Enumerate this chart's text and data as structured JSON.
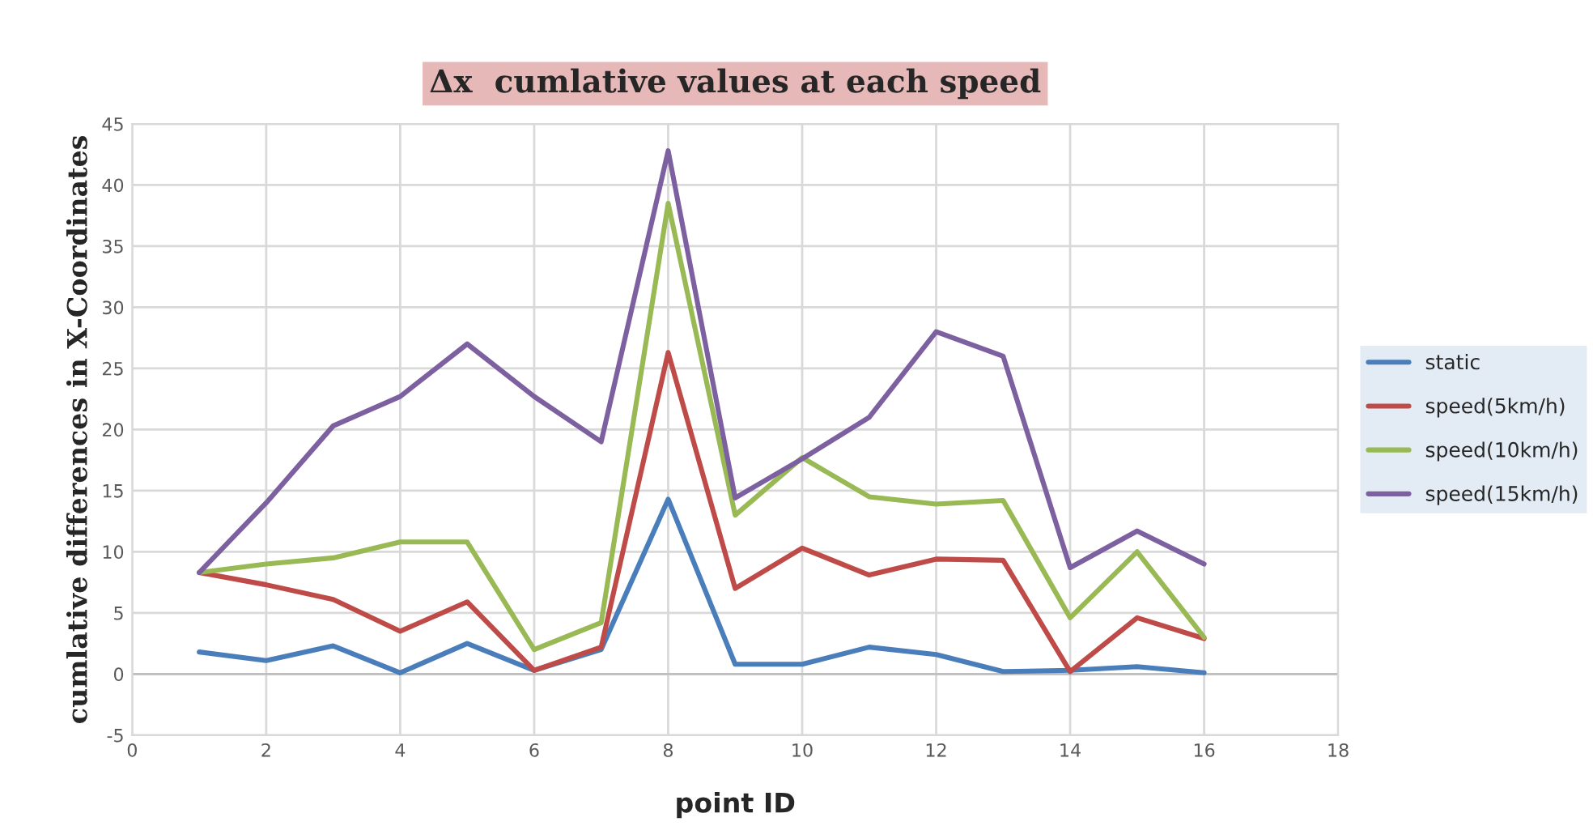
{
  "chart_data": {
    "type": "line",
    "title": "Δx  cumlative values at each speed",
    "xlabel": "point ID",
    "ylabel": "cumlative differences in X-Coordinates",
    "x": [
      1,
      2,
      3,
      4,
      5,
      6,
      7,
      8,
      9,
      10,
      11,
      12,
      13,
      14,
      15,
      16
    ],
    "series": [
      {
        "name": "static",
        "color": "#4a7ebb",
        "values": [
          1.8,
          1.1,
          2.3,
          0.1,
          2.5,
          0.3,
          2.0,
          14.3,
          0.8,
          0.8,
          2.2,
          1.6,
          0.2,
          0.3,
          0.6,
          0.1
        ]
      },
      {
        "name": "speed(5km/h)",
        "color": "#be4b48",
        "values": [
          8.3,
          7.3,
          6.1,
          3.5,
          5.9,
          0.3,
          2.2,
          26.3,
          7.0,
          10.3,
          8.1,
          9.4,
          9.3,
          0.2,
          4.6,
          2.9
        ]
      },
      {
        "name": "speed(10km/h)",
        "color": "#98b954",
        "values": [
          8.3,
          9.0,
          9.5,
          10.8,
          10.8,
          2.0,
          4.2,
          38.5,
          13.0,
          17.7,
          14.5,
          13.9,
          14.2,
          4.6,
          10.0,
          3.0
        ]
      },
      {
        "name": "speed(15km/h)",
        "color": "#7d60a0",
        "values": [
          8.3,
          14.0,
          20.3,
          22.7,
          27.0,
          22.7,
          19.0,
          42.8,
          14.4,
          17.6,
          21.0,
          28.0,
          26.0,
          8.7,
          11.7,
          9.0
        ]
      }
    ],
    "xlim": [
      0,
      18
    ],
    "xticks": [
      0,
      2,
      4,
      6,
      8,
      10,
      12,
      14,
      16,
      18
    ],
    "ylim": [
      -5,
      45
    ],
    "yticks": [
      -5,
      0,
      5,
      10,
      15,
      20,
      25,
      30,
      35,
      40,
      45
    ],
    "grid": true,
    "legend": "right",
    "marker": "none",
    "line_style": "solid"
  }
}
